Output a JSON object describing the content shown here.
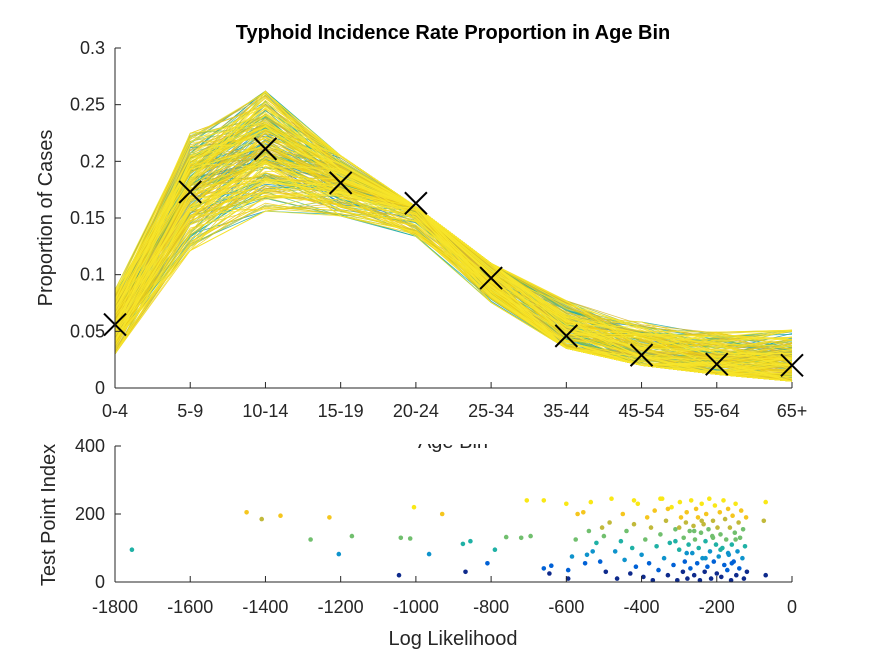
{
  "chart_data": [
    {
      "type": "line",
      "title": "Typhoid Incidence Rate Proportion in Age Bin",
      "xlabel": "Age Bin",
      "ylabel": "Proportion of Cases",
      "categories": [
        "0-4",
        "5-9",
        "10-14",
        "15-19",
        "20-24",
        "25-34",
        "35-44",
        "45-54",
        "55-64",
        "65+"
      ],
      "ylim": [
        0,
        0.3
      ],
      "yticks": [
        "0",
        "0.05",
        "0.1",
        "0.15",
        "0.2",
        "0.25",
        "0.3"
      ],
      "series": [
        {
          "values": [
            0.056,
            0.173,
            0.211,
            0.181,
            0.163,
            0.097,
            0.046,
            0.029,
            0.021,
            0.02
          ]
        }
      ],
      "ensemble": {
        "count": 250,
        "colors": [
          "#0072BD",
          "#0E8FB8",
          "#21A9A3",
          "#57B87E",
          "#A6BE3A",
          "#D9B92F",
          "#EFD016",
          "#F7E52C"
        ],
        "band_low": [
          0.03,
          0.115,
          0.14,
          0.14,
          0.095,
          0.062,
          0.035,
          0.02,
          0.012,
          0.006
        ],
        "band_high": [
          0.098,
          0.23,
          0.262,
          0.205,
          0.16,
          0.11,
          0.104,
          0.085,
          0.075,
          0.075
        ]
      },
      "grid": false
    },
    {
      "type": "scatter",
      "xlabel": "Log Likelihood",
      "ylabel": "Test Point Index",
      "xlim": [
        -1800,
        0
      ],
      "ylim": [
        0,
        400
      ],
      "xticks": [
        "-1800",
        "-1600",
        "-1400",
        "-1200",
        "-1000",
        "-800",
        "-600",
        "-400",
        "-200",
        "0"
      ],
      "yticks": [
        "0",
        "200",
        "400"
      ],
      "colorscale": [
        "#0E2A8C",
        "#0061D6",
        "#0E93CC",
        "#1FB1A5",
        "#71BF6E",
        "#C1B93A",
        "#F5C61E",
        "#F9E816"
      ],
      "points": [
        [
          -1755,
          95
        ],
        [
          -1450,
          205
        ],
        [
          -1410,
          185
        ],
        [
          -1360,
          195
        ],
        [
          -1280,
          125
        ],
        [
          -1230,
          190
        ],
        [
          -1205,
          82
        ],
        [
          -1170,
          135
        ],
        [
          -1045,
          20
        ],
        [
          -1040,
          130
        ],
        [
          -1015,
          128
        ],
        [
          -1005,
          220
        ],
        [
          -965,
          82
        ],
        [
          -930,
          200
        ],
        [
          -875,
          112
        ],
        [
          -868,
          30
        ],
        [
          -855,
          120
        ],
        [
          -810,
          55
        ],
        [
          -790,
          95
        ],
        [
          -760,
          132
        ],
        [
          -720,
          130
        ],
        [
          -705,
          240
        ],
        [
          -695,
          135
        ],
        [
          -660,
          240
        ],
        [
          -660,
          40
        ],
        [
          -645,
          25
        ],
        [
          -640,
          48
        ],
        [
          -600,
          230
        ],
        [
          -595,
          35
        ],
        [
          -595,
          10
        ],
        [
          -585,
          75
        ],
        [
          -575,
          125
        ],
        [
          -570,
          200
        ],
        [
          -555,
          205
        ],
        [
          -550,
          55
        ],
        [
          -545,
          80
        ],
        [
          -540,
          150
        ],
        [
          -535,
          235
        ],
        [
          -530,
          90
        ],
        [
          -520,
          115
        ],
        [
          -510,
          60
        ],
        [
          -505,
          160
        ],
        [
          -500,
          135
        ],
        [
          -495,
          30
        ],
        [
          -485,
          175
        ],
        [
          -480,
          245
        ],
        [
          -470,
          90
        ],
        [
          -465,
          10
        ],
        [
          -455,
          120
        ],
        [
          -450,
          200
        ],
        [
          -445,
          65
        ],
        [
          -440,
          150
        ],
        [
          -430,
          25
        ],
        [
          -425,
          100
        ],
        [
          -420,
          170
        ],
        [
          -415,
          45
        ],
        [
          -410,
          230
        ],
        [
          -400,
          80
        ],
        [
          -395,
          15
        ],
        [
          -390,
          125
        ],
        [
          -385,
          190
        ],
        [
          -380,
          55
        ],
        [
          -375,
          160
        ],
        [
          -370,
          5
        ],
        [
          -365,
          210
        ],
        [
          -360,
          105
        ],
        [
          -355,
          35
        ],
        [
          -350,
          140
        ],
        [
          -345,
          245
        ],
        [
          -340,
          70
        ],
        [
          -335,
          180
        ],
        [
          -330,
          20
        ],
        [
          -325,
          115
        ],
        [
          -320,
          220
        ],
        [
          -315,
          50
        ],
        [
          -310,
          155
        ],
        [
          -305,
          5
        ],
        [
          -300,
          95
        ],
        [
          -298,
          235
        ],
        [
          -295,
          190
        ],
        [
          -290,
          30
        ],
        [
          -288,
          130
        ],
        [
          -285,
          60
        ],
        [
          -282,
          175
        ],
        [
          -280,
          205
        ],
        [
          -278,
          10
        ],
        [
          -275,
          110
        ],
        [
          -272,
          150
        ],
        [
          -270,
          40
        ],
        [
          -268,
          240
        ],
        [
          -265,
          85
        ],
        [
          -262,
          165
        ],
        [
          -260,
          20
        ],
        [
          -258,
          125
        ],
        [
          -255,
          215
        ],
        [
          -252,
          55
        ],
        [
          -250,
          190
        ],
        [
          -248,
          100
        ],
        [
          -245,
          5
        ],
        [
          -242,
          145
        ],
        [
          -240,
          230
        ],
        [
          -238,
          70
        ],
        [
          -235,
          170
        ],
        [
          -232,
          30
        ],
        [
          -230,
          120
        ],
        [
          -228,
          200
        ],
        [
          -225,
          45
        ],
        [
          -222,
          155
        ],
        [
          -220,
          245
        ],
        [
          -218,
          90
        ],
        [
          -215,
          10
        ],
        [
          -212,
          135
        ],
        [
          -210,
          180
        ],
        [
          -208,
          60
        ],
        [
          -205,
          225
        ],
        [
          -202,
          110
        ],
        [
          -200,
          25
        ],
        [
          -198,
          160
        ],
        [
          -195,
          75
        ],
        [
          -192,
          205
        ],
        [
          -190,
          140
        ],
        [
          -188,
          15
        ],
        [
          -185,
          100
        ],
        [
          -182,
          240
        ],
        [
          -180,
          50
        ],
        [
          -178,
          185
        ],
        [
          -175,
          125
        ],
        [
          -172,
          35
        ],
        [
          -170,
          215
        ],
        [
          -168,
          80
        ],
        [
          -165,
          160
        ],
        [
          -162,
          5
        ],
        [
          -160,
          110
        ],
        [
          -158,
          195
        ],
        [
          -155,
          60
        ],
        [
          -152,
          145
        ],
        [
          -150,
          230
        ],
        [
          -148,
          20
        ],
        [
          -145,
          90
        ],
        [
          -142,
          175
        ],
        [
          -140,
          40
        ],
        [
          -138,
          130
        ],
        [
          -135,
          210
        ],
        [
          -132,
          70
        ],
        [
          -130,
          155
        ],
        [
          -128,
          10
        ],
        [
          -125,
          105
        ],
        [
          -122,
          190
        ],
        [
          -120,
          30
        ],
        [
          -75,
          180
        ],
        [
          -70,
          235
        ],
        [
          -70,
          20
        ],
        [
          -420,
          240
        ],
        [
          -350,
          245
        ],
        [
          -330,
          215
        ],
        [
          -300,
          160
        ],
        [
          -260,
          150
        ],
        [
          -240,
          180
        ],
        [
          -210,
          130
        ],
        [
          -190,
          95
        ],
        [
          -230,
          70
        ],
        [
          -160,
          55
        ],
        [
          -150,
          125
        ],
        [
          -170,
          85
        ],
        [
          -280,
          85
        ],
        [
          -310,
          120
        ]
      ]
    }
  ]
}
